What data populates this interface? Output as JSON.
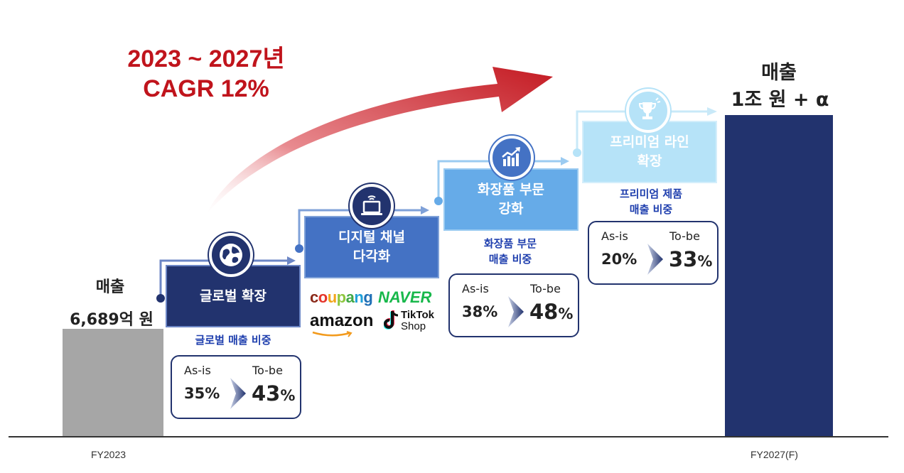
{
  "cagr": {
    "line1": "2023 ~ 2027년",
    "line2": "CAGR 12%",
    "color": "#c0141c"
  },
  "chart_data": {
    "type": "bar",
    "categories": [
      "FY2023",
      "FY2027(F)"
    ],
    "series": [
      {
        "values_label": [
          "6,689억 원",
          "1조 원 + α"
        ],
        "colors": [
          "#a6a6a6",
          "#22336e"
        ]
      }
    ]
  },
  "revenue": {
    "start_label": "매출",
    "start_value": "6,689억 원",
    "end_label": "매출",
    "end_value": "1조 원 + α"
  },
  "axis": {
    "start_tick": "FY2023",
    "end_tick": "FY2027(F)"
  },
  "steps": [
    {
      "label": "글로벌 확장",
      "icon": "globe-icon",
      "color": "#22336e",
      "share_title": "글로벌 매출 비중",
      "asis_label": "As-is",
      "asis_value": "35%",
      "tobe_label": "To-be",
      "tobe_num": "43",
      "tobe_unit": "%"
    },
    {
      "label_line1": "디지털 채널",
      "label_line2": "다각화",
      "icon": "laptop-icon",
      "color": "#4472c4",
      "brands": {
        "coupang": "coupang",
        "naver": "NAVER",
        "amazon": "amazon",
        "tiktok": "TikTok",
        "tiktok_sub": "Shop"
      }
    },
    {
      "label_line1": "화장품 부문",
      "label_line2": "강화",
      "icon": "growth-chart-icon",
      "color": "#66abe8",
      "share_title_line1": "화장품 부문",
      "share_title_line2": "매출 비중",
      "asis_label": "As-is",
      "asis_value": "38%",
      "tobe_label": "To-be",
      "tobe_num": "48",
      "tobe_unit": "%"
    },
    {
      "label_line1": "프리미엄 라인",
      "label_line2": "확장",
      "icon": "trophy-icon",
      "color": "#b6e3f8",
      "share_title_line1": "프리미엄 제품",
      "share_title_line2": "매출 비중",
      "asis_label": "As-is",
      "asis_value": "20%",
      "tobe_label": "To-be",
      "tobe_num": "33",
      "tobe_unit": "%"
    }
  ]
}
